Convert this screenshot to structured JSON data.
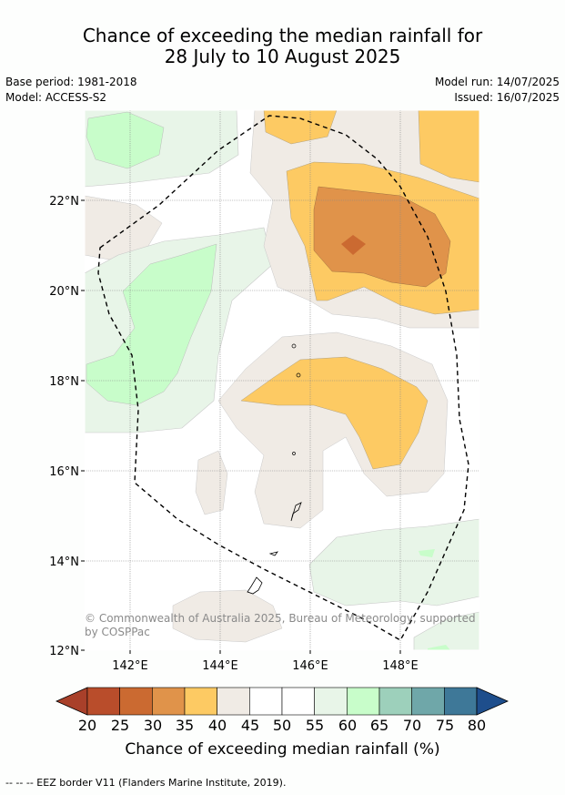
{
  "title_line1": "Chance of exceeding the median rainfall for",
  "title_line2": "28 July to 10 August 2025",
  "meta": {
    "base_period": "Base period: 1981-2018",
    "model": "Model: ACCESS-S2",
    "model_run": "Model run: 14/07/2025",
    "issued": "Issued: 16/07/2025"
  },
  "axes": {
    "lat_labels": [
      "22°N",
      "20°N",
      "18°N",
      "16°N",
      "14°N",
      "12°N"
    ],
    "lon_labels": [
      "142°E",
      "144°E",
      "146°E",
      "148°E"
    ]
  },
  "copyright": "© Commonwealth of Australia 2025, Bureau of Meteorology, supported by COSPPac",
  "colorbar": {
    "ticks": [
      "20",
      "25",
      "30",
      "35",
      "40",
      "45",
      "50",
      "55",
      "60",
      "65",
      "70",
      "75",
      "80"
    ],
    "colors": [
      "#a9402a",
      "#b94d2b",
      "#cb6a31",
      "#e0934a",
      "#fdca63",
      "#f0ebe5",
      "#ffffff",
      "#ffffff",
      "#e8f5e8",
      "#c8fdca",
      "#9dd0bb",
      "#6fa7a9",
      "#3e7898",
      "#1e4e8c"
    ],
    "label": "Chance of exceeding median rainfall (%)"
  },
  "footnote": "--  --  -- EEZ border V11 (Flanders Marine Institute, 2019)."
}
